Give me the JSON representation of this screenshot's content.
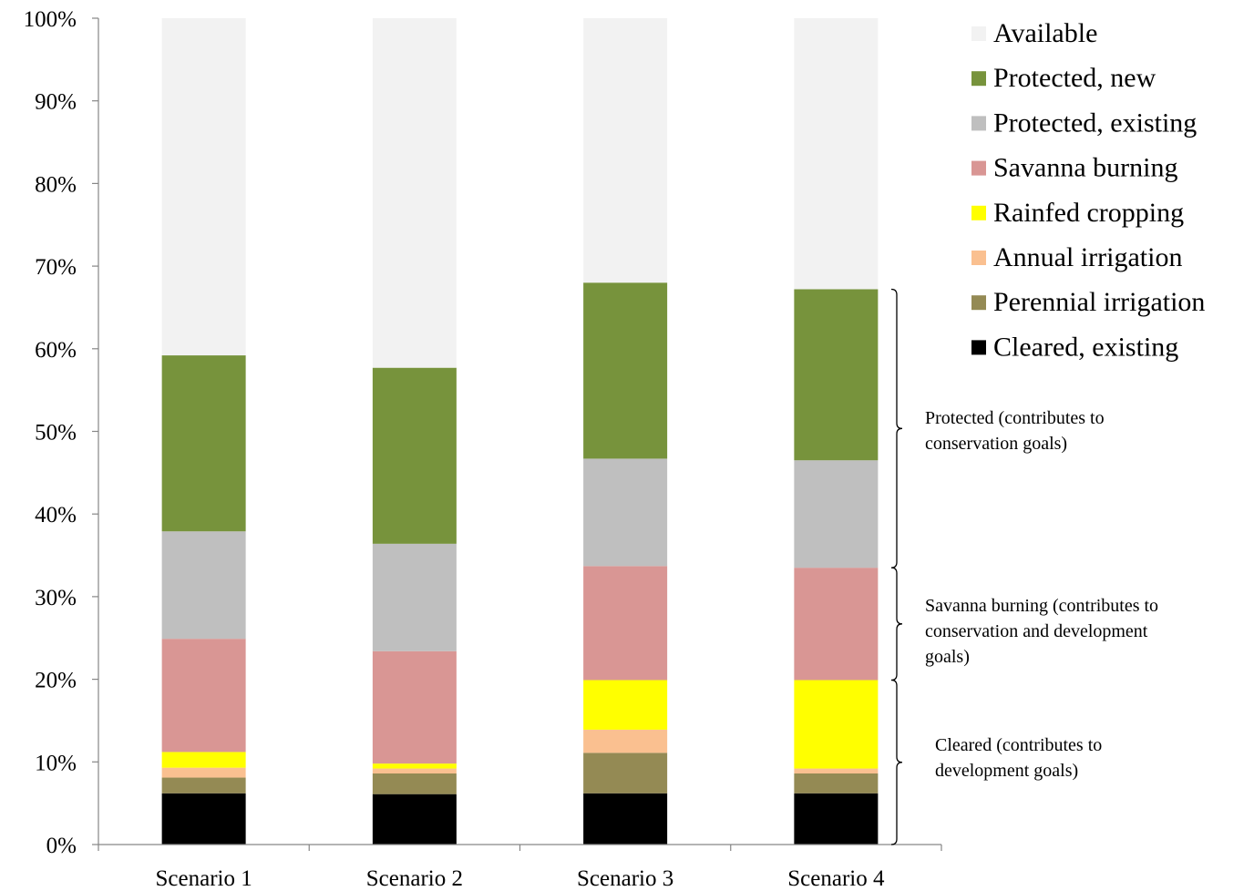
{
  "chart_data": {
    "type": "bar",
    "stacked": true,
    "percent": true,
    "categories": [
      "Scenario 1",
      "Scenario 2",
      "Scenario 3",
      "Scenario 4"
    ],
    "ylim": [
      0,
      100
    ],
    "yticks": [
      "0%",
      "10%",
      "20%",
      "30%",
      "40%",
      "50%",
      "60%",
      "70%",
      "80%",
      "90%",
      "100%"
    ],
    "grid": false,
    "legend_position": "top-right",
    "series": [
      {
        "name": "Cleared, existing",
        "color": "#000000",
        "values": [
          6.2,
          6.1,
          6.2,
          6.2
        ]
      },
      {
        "name": "Perennial irrigation",
        "color": "#948a54",
        "values": [
          1.9,
          2.5,
          4.9,
          2.4
        ]
      },
      {
        "name": "Annual irrigation",
        "color": "#fac090",
        "values": [
          1.2,
          0.6,
          2.8,
          0.6
        ]
      },
      {
        "name": "Rainfed cropping",
        "color": "#ffff00",
        "values": [
          1.9,
          0.6,
          6.0,
          10.7
        ]
      },
      {
        "name": "Savanna burning",
        "color": "#d99694",
        "values": [
          13.7,
          13.6,
          13.8,
          13.6
        ]
      },
      {
        "name": "Protected, existing",
        "color": "#bfbfbf",
        "values": [
          13.0,
          13.0,
          13.0,
          13.0
        ]
      },
      {
        "name": "Protected, new",
        "color": "#77933c",
        "values": [
          21.3,
          21.3,
          21.3,
          20.7
        ]
      },
      {
        "name": "Available",
        "color": "#f2f2f2",
        "values": [
          40.8,
          42.3,
          32.0,
          32.8
        ]
      }
    ],
    "annotations": [
      {
        "lines": [
          "Protected (contributes to",
          "conservation goals)"
        ],
        "range": [
          33.5,
          67.2
        ]
      },
      {
        "lines": [
          "Savanna burning (contributes to",
          "conservation and development",
          "goals)"
        ],
        "range": [
          19.9,
          33.5
        ]
      },
      {
        "lines": [
          "Cleared (contributes to",
          "development goals)"
        ],
        "range": [
          0,
          19.9
        ]
      }
    ]
  }
}
